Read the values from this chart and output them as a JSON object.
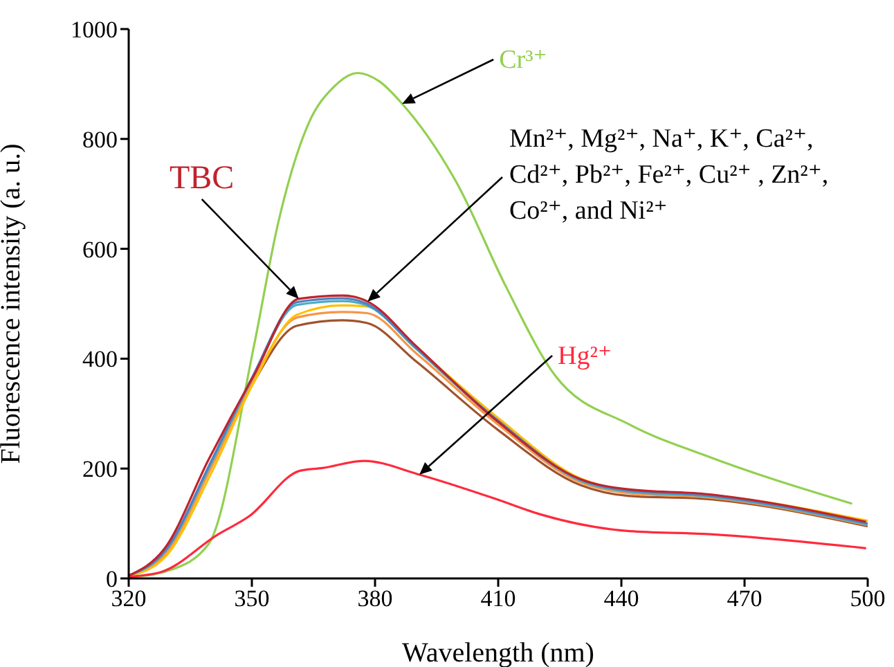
{
  "chart_data": {
    "type": "line",
    "xlabel": "Wavelength (nm)",
    "ylabel": "Fluorescence intensity (a. u.)",
    "xlim": [
      320,
      500
    ],
    "xticks": [
      320,
      350,
      380,
      410,
      440,
      470,
      500
    ],
    "ylim": [
      0,
      1000
    ],
    "yticks": [
      0,
      200,
      400,
      600,
      800,
      1000
    ],
    "grid": false,
    "legend": false,
    "marker": "none",
    "line_style": "solid",
    "series": [
      {
        "name": "Cr³⁺",
        "color": "#92d050",
        "x": [
          320,
          330,
          339.5,
          350.5,
          356.4,
          363.8,
          370,
          375.8,
          381,
          386.6,
          399.9,
          411.9,
          423.8,
          442,
          460,
          496.2
        ],
        "values": [
          2,
          15,
          63,
          423,
          647,
          828,
          895,
          920,
          905,
          864,
          720,
          531,
          370,
          280,
          225,
          136
        ]
      },
      {
        "color": "#a0522d",
        "x": [
          320,
          329,
          340,
          350,
          361,
          372,
          378,
          390,
          410,
          430,
          442,
          460,
          500
        ],
        "values": [
          4,
          48,
          205,
          352,
          460,
          470,
          465,
          395,
          270,
          170,
          150,
          145,
          95
        ]
      },
      {
        "color": "#f79646",
        "x": [
          320,
          329,
          340,
          350,
          361,
          372,
          378,
          390,
          410,
          430,
          442,
          460,
          500
        ],
        "values": [
          4,
          45,
          200,
          355,
          475,
          485,
          483,
          410,
          280,
          175,
          155,
          148,
          97
        ]
      },
      {
        "color": "#ffc000",
        "x": [
          320,
          329,
          340,
          350,
          361,
          372,
          378,
          390,
          410,
          430,
          442,
          460,
          500
        ],
        "values": [
          4,
          40,
          190,
          350,
          480,
          497,
          495,
          420,
          292,
          182,
          160,
          153,
          105
        ]
      },
      {
        "color": "#4bacc6",
        "x": [
          320,
          329,
          340,
          350,
          361,
          372,
          378,
          390,
          410,
          430,
          442,
          460,
          500
        ],
        "values": [
          5,
          50,
          208,
          362,
          498,
          505,
          497,
          418,
          285,
          178,
          158,
          150,
          98
        ]
      },
      {
        "color": "#4f81bd",
        "x": [
          320,
          329,
          340,
          350,
          361,
          372,
          378,
          390,
          410,
          430,
          442,
          460,
          500
        ],
        "values": [
          5,
          52,
          212,
          365,
          503,
          510,
          500,
          420,
          287,
          180,
          160,
          152,
          100
        ]
      },
      {
        "name": "TBC",
        "color": "#c0232d",
        "x": [
          320,
          328.8,
          339.5,
          350.5,
          361.4,
          372.2,
          378.2,
          390,
          409.5,
          429.9,
          442,
          460.1,
          499.6
        ],
        "values": [
          5,
          55,
          217,
          370,
          509,
          515,
          504,
          423,
          288,
          181,
          162,
          154,
          103
        ]
      },
      {
        "name": "Hg²⁺",
        "color": "#ff2a3c",
        "x": [
          320,
          328,
          341.5,
          349.3,
          361.7,
          367.2,
          377.3,
          390.8,
          408.9,
          420.1,
          442,
          460.1,
          499.6
        ],
        "values": [
          3,
          12,
          79,
          113,
          196,
          201,
          214,
          189,
          146,
          117,
          86,
          81,
          55
        ]
      }
    ],
    "annotations": [
      {
        "text": "Mn²⁺, Mg²⁺, Na⁺, K⁺, Ca²⁺, Cd²⁺, Pb²⁺, Fe²⁺, Cu²⁺ , Zn²⁺, Co²⁺, and Ni²⁺",
        "x": 378.2,
        "y": 504
      }
    ]
  }
}
